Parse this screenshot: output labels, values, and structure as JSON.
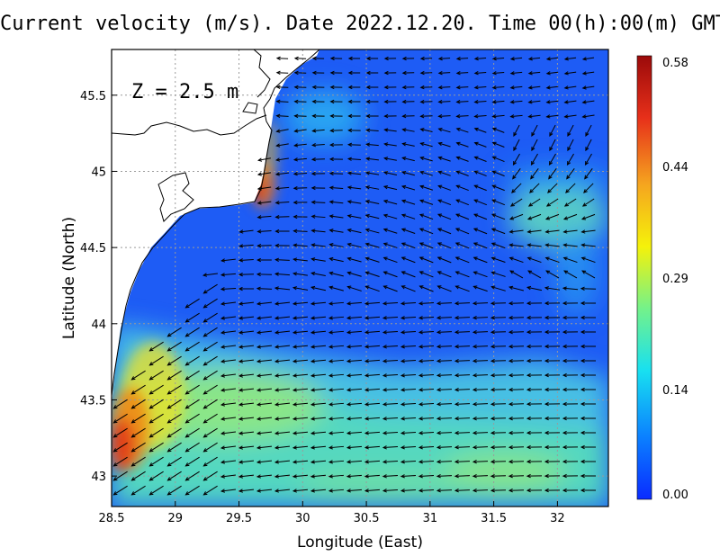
{
  "title": "Current velocity (m/s). Date 2022.12.20. Time 00(h):00(m) GMT",
  "depth_label": "Z = 2.5 m",
  "axes": {
    "xlabel": "Longitude (East)",
    "ylabel": "Latitude (North)",
    "xlim": [
      28.5,
      32.4
    ],
    "ylim": [
      42.8,
      45.8
    ],
    "xticks": [
      "28.5",
      "29",
      "29.5",
      "30",
      "30.5",
      "31",
      "31.5",
      "32"
    ],
    "yticks": [
      "43",
      "43.5",
      "44",
      "44.5",
      "45",
      "45.5"
    ],
    "grid": true
  },
  "colorbar": {
    "min": 0.0,
    "max": 0.58,
    "labels": [
      "0.58",
      "0.44",
      "0.29",
      "0.14",
      "0.00"
    ],
    "colors": [
      "#0a2bff",
      "#0b80ff",
      "#18e0f0",
      "#74f28a",
      "#f5f20a",
      "#f5a51f",
      "#e7301a",
      "#9b0a0a"
    ]
  },
  "chart_data": {
    "type": "heatmap",
    "title": "Current velocity (m/s). Date 2022.12.20. Time 00(h):00(m) GMT",
    "xlabel": "Longitude (East)",
    "ylabel": "Latitude (North)",
    "units": "m/s",
    "field": "surface current speed with velocity vectors",
    "xlim": [
      28.5,
      32.4
    ],
    "ylim": [
      42.8,
      45.8
    ],
    "value_range": [
      0.0,
      0.58
    ],
    "features": [
      {
        "name": "coastal jet max",
        "lon": 28.6,
        "lat": 43.3,
        "speed": 0.5
      },
      {
        "name": "northern coast max",
        "lon": 29.65,
        "lat": 44.85,
        "speed": 0.47
      },
      {
        "name": "eastern eddy",
        "lon": 32.0,
        "lat": 44.75,
        "speed": 0.27
      },
      {
        "name": "southern band",
        "lon": 30.5,
        "lat": 43.0,
        "speed": 0.22
      }
    ]
  }
}
